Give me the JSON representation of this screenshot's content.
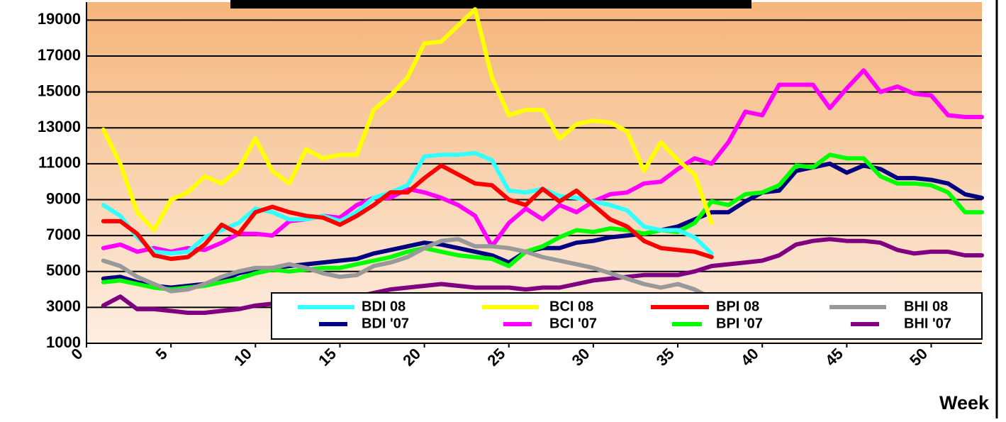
{
  "chart_data": {
    "type": "line",
    "x_label": "Week",
    "x": [
      1,
      2,
      3,
      4,
      5,
      6,
      7,
      8,
      9,
      10,
      11,
      12,
      13,
      14,
      15,
      16,
      17,
      18,
      19,
      20,
      21,
      22,
      23,
      24,
      25,
      26,
      27,
      28,
      29,
      30,
      31,
      32,
      33,
      34,
      35,
      36,
      37,
      38,
      39,
      40,
      41,
      42,
      43,
      44,
      45,
      46,
      47,
      48,
      49,
      50,
      51,
      52,
      53
    ],
    "xlim": [
      0,
      53
    ],
    "xticks": [
      0,
      5,
      10,
      15,
      20,
      25,
      30,
      35,
      40,
      45,
      50
    ],
    "ylim": [
      1000,
      20000
    ],
    "yticks": [
      1000,
      3000,
      5000,
      7000,
      9000,
      11000,
      13000,
      15000,
      17000,
      19000
    ],
    "grid": true,
    "legend": "bottom",
    "series": [
      {
        "name": "BDI 08",
        "color": "#33ffff",
        "values": [
          8700,
          8100,
          6900,
          6100,
          6000,
          6100,
          6900,
          7300,
          7700,
          8500,
          8300,
          7900,
          7900,
          8100,
          7800,
          8300,
          9100,
          9400,
          9800,
          11400,
          11500,
          11500,
          11600,
          11200,
          9500,
          9400,
          9600,
          9200,
          9100,
          8900,
          8700,
          8400,
          7500,
          7300,
          7300,
          6900,
          6000,
          null,
          null,
          null,
          null,
          null,
          null,
          null,
          null,
          null,
          null,
          null,
          null,
          null,
          null,
          null,
          null
        ]
      },
      {
        "name": "BCI 08",
        "color": "#ffff00",
        "values": [
          12900,
          11000,
          8300,
          7300,
          9000,
          9400,
          10300,
          9900,
          10700,
          12400,
          10600,
          9900,
          11800,
          11300,
          11500,
          11500,
          14000,
          14800,
          15800,
          17700,
          17800,
          18700,
          19600,
          15800,
          13700,
          14000,
          14000,
          12400,
          13200,
          13400,
          13300,
          12800,
          10600,
          12200,
          11200,
          10400,
          7700,
          null,
          null,
          null,
          null,
          null,
          null,
          null,
          null,
          null,
          null,
          null,
          null,
          null,
          null,
          null,
          null
        ]
      },
      {
        "name": "BPI 08",
        "color": "#ff0000",
        "values": [
          7800,
          7800,
          7100,
          5900,
          5700,
          5800,
          6500,
          7600,
          7100,
          8300,
          8600,
          8300,
          8100,
          8000,
          7600,
          8100,
          8700,
          9400,
          9400,
          10200,
          10900,
          10400,
          9900,
          9800,
          9000,
          8700,
          9600,
          8900,
          9500,
          8700,
          7900,
          7500,
          6700,
          6300,
          6200,
          6100,
          5800,
          null,
          null,
          null,
          null,
          null,
          null,
          null,
          null,
          null,
          null,
          null,
          null,
          null,
          null,
          null,
          null
        ]
      },
      {
        "name": "BHI 08",
        "color": "#999999",
        "values": [
          5600,
          5300,
          4700,
          4300,
          3900,
          4000,
          4300,
          4700,
          5000,
          5200,
          5200,
          5400,
          5200,
          4900,
          4700,
          4800,
          5300,
          5500,
          5800,
          6300,
          6700,
          6800,
          6400,
          6400,
          6300,
          6100,
          5800,
          5600,
          5400,
          5200,
          4900,
          4600,
          4300,
          4100,
          4300,
          4000,
          3500,
          null,
          null,
          null,
          null,
          null,
          null,
          null,
          null,
          null,
          null,
          null,
          null,
          null,
          null,
          null,
          null
        ]
      },
      {
        "name": "BDI '07",
        "color": "#000080",
        "values": [
          4600,
          4700,
          4400,
          4200,
          4100,
          4200,
          4300,
          4500,
          4900,
          5100,
          5200,
          5300,
          5400,
          5500,
          5600,
          5700,
          6000,
          6200,
          6400,
          6600,
          6500,
          6300,
          6100,
          5900,
          5500,
          6100,
          6300,
          6300,
          6600,
          6700,
          6900,
          7000,
          7100,
          7300,
          7500,
          7900,
          8300,
          8300,
          8900,
          9400,
          9500,
          10600,
          10800,
          11000,
          10500,
          10900,
          10700,
          10200,
          10200,
          10100,
          9900,
          9300,
          9100
        ]
      },
      {
        "name": "BCI '07",
        "color": "#ff00ff",
        "values": [
          6300,
          6500,
          6100,
          6300,
          6100,
          6300,
          6200,
          6600,
          7100,
          7100,
          7000,
          7800,
          7900,
          8100,
          8000,
          8700,
          9100,
          9100,
          9600,
          9400,
          9100,
          8700,
          8100,
          6400,
          7700,
          8500,
          7900,
          8700,
          8300,
          8900,
          9300,
          9400,
          9900,
          10000,
          10700,
          11300,
          11000,
          12200,
          13900,
          13700,
          15400,
          15400,
          15400,
          14100,
          15200,
          16200,
          15000,
          15300,
          14900,
          14800,
          13700,
          13600,
          13600
        ]
      },
      {
        "name": "BPI '07",
        "color": "#00ff00",
        "values": [
          4400,
          4500,
          4300,
          4100,
          4000,
          4100,
          4200,
          4400,
          4600,
          4900,
          5100,
          5000,
          5100,
          5200,
          5200,
          5400,
          5600,
          5800,
          6100,
          6300,
          6100,
          5900,
          5800,
          5700,
          5300,
          6100,
          6400,
          6900,
          7300,
          7200,
          7400,
          7300,
          7100,
          7300,
          7200,
          7700,
          8900,
          8700,
          9300,
          9400,
          9800,
          10900,
          10800,
          11500,
          11300,
          11300,
          10300,
          9900,
          9900,
          9800,
          9400,
          8300,
          8300
        ]
      },
      {
        "name": "BHI '07",
        "color": "#800080",
        "values": [
          3100,
          3600,
          2900,
          2900,
          2800,
          2700,
          2700,
          2800,
          2900,
          3100,
          3200,
          3300,
          3400,
          3500,
          3600,
          3600,
          3800,
          4000,
          4100,
          4200,
          4300,
          4200,
          4100,
          4100,
          4100,
          4000,
          4100,
          4100,
          4300,
          4500,
          4600,
          4700,
          4800,
          4800,
          4800,
          5000,
          5300,
          5400,
          5500,
          5600,
          5900,
          6500,
          6700,
          6800,
          6700,
          6700,
          6600,
          6200,
          6000,
          6100,
          6100,
          5900,
          5900
        ]
      }
    ]
  }
}
